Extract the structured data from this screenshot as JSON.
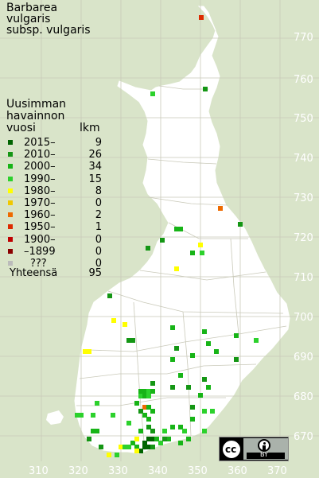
{
  "title": [
    "Barbarea",
    "vulgaris",
    "subsp. vulgaris"
  ],
  "legend_heading": [
    "Uusimman",
    "havainnon",
    "vuosi"
  ],
  "legend_count_heading": "lkm",
  "legend": [
    {
      "label": "2015–",
      "count": "9",
      "color": "#006400"
    },
    {
      "label": "2010–",
      "count": "26",
      "color": "#149614"
    },
    {
      "label": "2000–",
      "count": "34",
      "color": "#17b417"
    },
    {
      "label": "1990–",
      "count": "15",
      "color": "#2cd12c"
    },
    {
      "label": "1980–",
      "count": "8",
      "color": "#ffff00"
    },
    {
      "label": "1970–",
      "count": "0",
      "color": "#f0c800"
    },
    {
      "label": "1960–",
      "count": "2",
      "color": "#ee6a00"
    },
    {
      "label": "1950–",
      "count": "1",
      "color": "#dd2a00"
    },
    {
      "label": "1900–",
      "count": "0",
      "color": "#c00000"
    },
    {
      "label": "–1899",
      "count": "0",
      "color": "#8b0000"
    },
    {
      "label": "???",
      "count": "0",
      "color": "#bbbbbb"
    }
  ],
  "total_label": "Yhteensä",
  "total_count": "95",
  "y_ticks": [
    "770",
    "760",
    "750",
    "740",
    "730",
    "720",
    "710",
    "700",
    "690",
    "680",
    "670"
  ],
  "x_ticks": [
    "310",
    "320",
    "330",
    "340",
    "350",
    "360",
    "370"
  ],
  "license_badge": {
    "cc": "cc",
    "by": "BY"
  },
  "background_color": "#d9e4c9",
  "land_color": "#ffffff"
}
